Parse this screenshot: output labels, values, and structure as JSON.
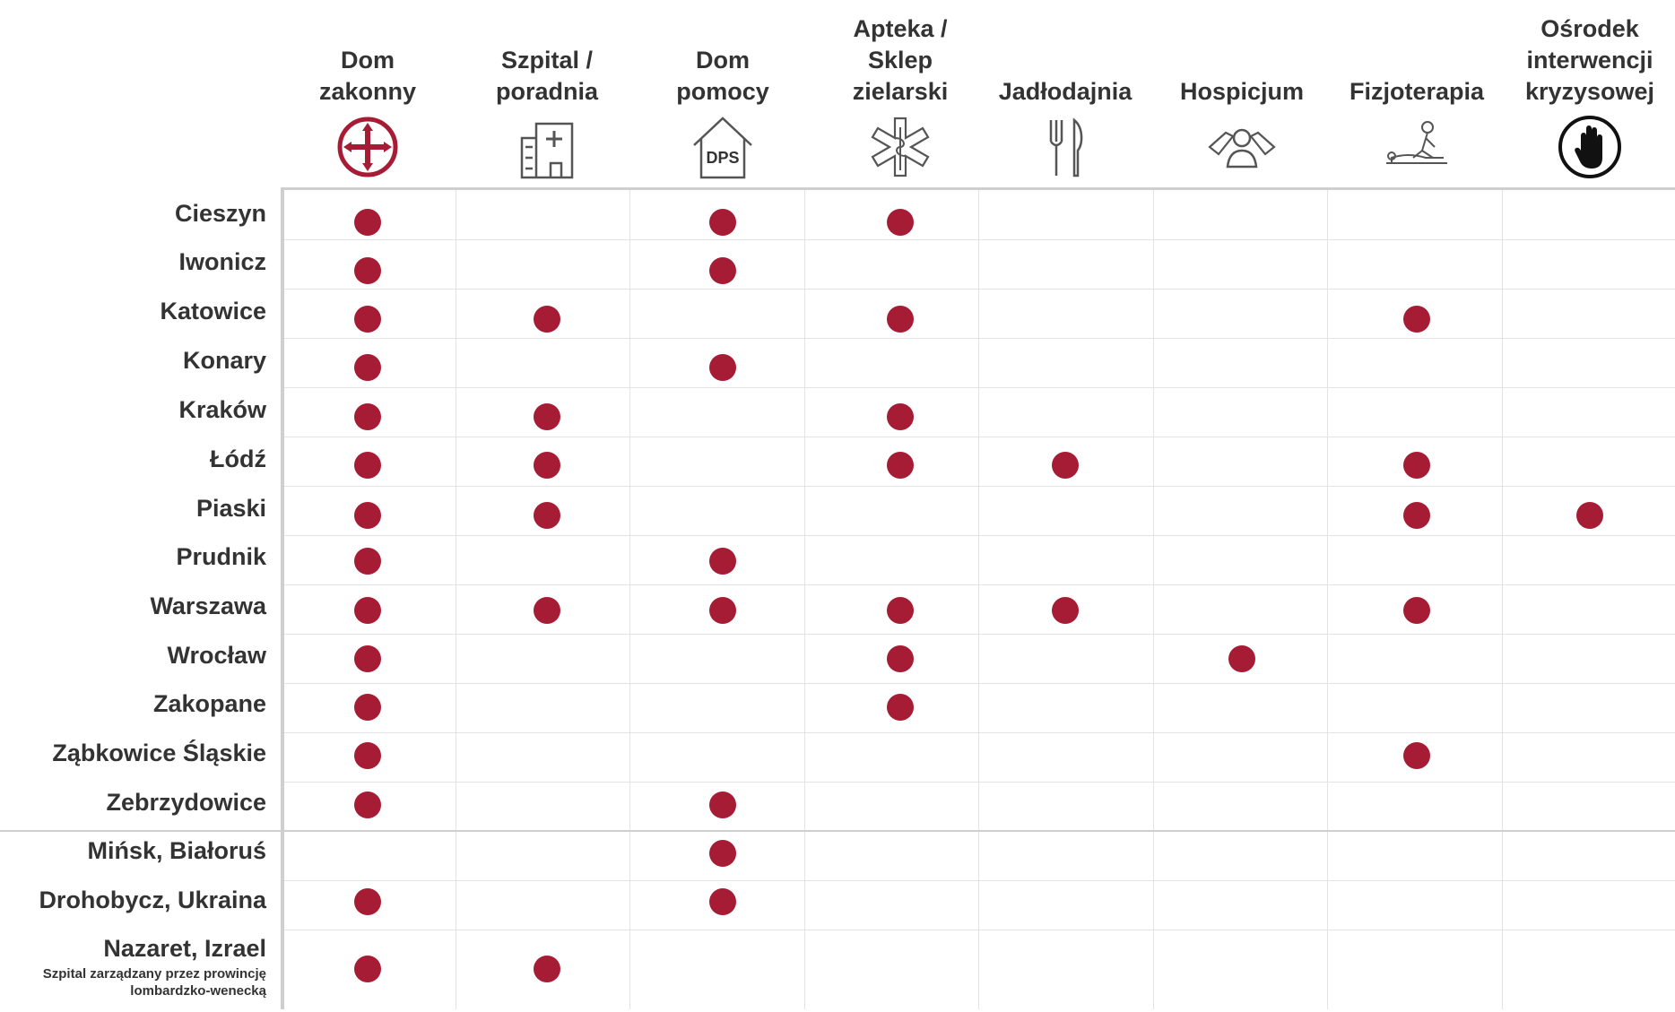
{
  "chart_data": {
    "type": "table",
    "columns": [
      {
        "label": "Dom zakonny",
        "lines": [
          "Dom",
          "zakonny"
        ],
        "icon": "cross-emblem-icon"
      },
      {
        "label": "Szpital / poradnia",
        "lines": [
          "Szpital /",
          "poradnia"
        ],
        "icon": "hospital-icon"
      },
      {
        "label": "Dom pomocy",
        "lines": [
          "Dom",
          "pomocy"
        ],
        "icon": "house-dps-icon",
        "icon_text": "DPS"
      },
      {
        "label": "Apteka / Sklep zielarski",
        "lines": [
          "Apteka /",
          "Sklep",
          "zielarski"
        ],
        "icon": "medical-star-icon"
      },
      {
        "label": "Jadłodajnia",
        "lines": [
          "Jadłodajnia"
        ],
        "icon": "fork-knife-icon"
      },
      {
        "label": "Hospicjum",
        "lines": [
          "Hospicjum"
        ],
        "icon": "caring-hands-icon"
      },
      {
        "label": "Fizjoterapia",
        "lines": [
          "Fizjoterapia"
        ],
        "icon": "massage-icon"
      },
      {
        "label": "Ośrodek interwencji kryzysowej",
        "lines": [
          "Ośrodek",
          "interwencji",
          "kryzysowej"
        ],
        "icon": "stop-hand-icon"
      }
    ],
    "rows": [
      {
        "label": "Cieszyn",
        "values": [
          1,
          0,
          1,
          1,
          0,
          0,
          0,
          0
        ]
      },
      {
        "label": "Iwonicz",
        "values": [
          1,
          0,
          1,
          0,
          0,
          0,
          0,
          0
        ]
      },
      {
        "label": "Katowice",
        "values": [
          1,
          1,
          0,
          1,
          0,
          0,
          1,
          0
        ]
      },
      {
        "label": "Konary",
        "values": [
          1,
          0,
          1,
          0,
          0,
          0,
          0,
          0
        ]
      },
      {
        "label": "Kraków",
        "values": [
          1,
          1,
          0,
          1,
          0,
          0,
          0,
          0
        ]
      },
      {
        "label": "Łódź",
        "values": [
          1,
          1,
          0,
          1,
          1,
          0,
          1,
          0
        ]
      },
      {
        "label": "Piaski",
        "values": [
          1,
          1,
          0,
          0,
          0,
          0,
          1,
          1
        ]
      },
      {
        "label": "Prudnik",
        "values": [
          1,
          0,
          1,
          0,
          0,
          0,
          0,
          0
        ]
      },
      {
        "label": "Warszawa",
        "values": [
          1,
          1,
          1,
          1,
          1,
          0,
          1,
          0
        ]
      },
      {
        "label": "Wrocław",
        "values": [
          1,
          0,
          0,
          1,
          0,
          1,
          0,
          0
        ]
      },
      {
        "label": "Zakopane",
        "values": [
          1,
          0,
          0,
          1,
          0,
          0,
          0,
          0
        ]
      },
      {
        "label": "Ząbkowice Śląskie",
        "values": [
          1,
          0,
          0,
          0,
          0,
          0,
          1,
          0
        ]
      },
      {
        "label": "Zebrzydowice",
        "values": [
          1,
          0,
          1,
          0,
          0,
          0,
          0,
          0
        ]
      },
      {
        "label": "Mińsk, Białoruś",
        "values": [
          0,
          0,
          1,
          0,
          0,
          0,
          0,
          0
        ]
      },
      {
        "label": "Drohobycz, Ukraina",
        "values": [
          1,
          0,
          1,
          0,
          0,
          0,
          0,
          0
        ]
      },
      {
        "label": "Nazaret, Izrael",
        "sublabel": [
          "Szpital zarządzany przez prowincję",
          "lombardzko-wenecką"
        ],
        "values": [
          1,
          1,
          0,
          0,
          0,
          0,
          0,
          0
        ]
      }
    ],
    "colors": {
      "marker": "#a61c34",
      "text": "#333333",
      "grid": "#e3e3e3",
      "divider": "#cfcfcf"
    }
  }
}
